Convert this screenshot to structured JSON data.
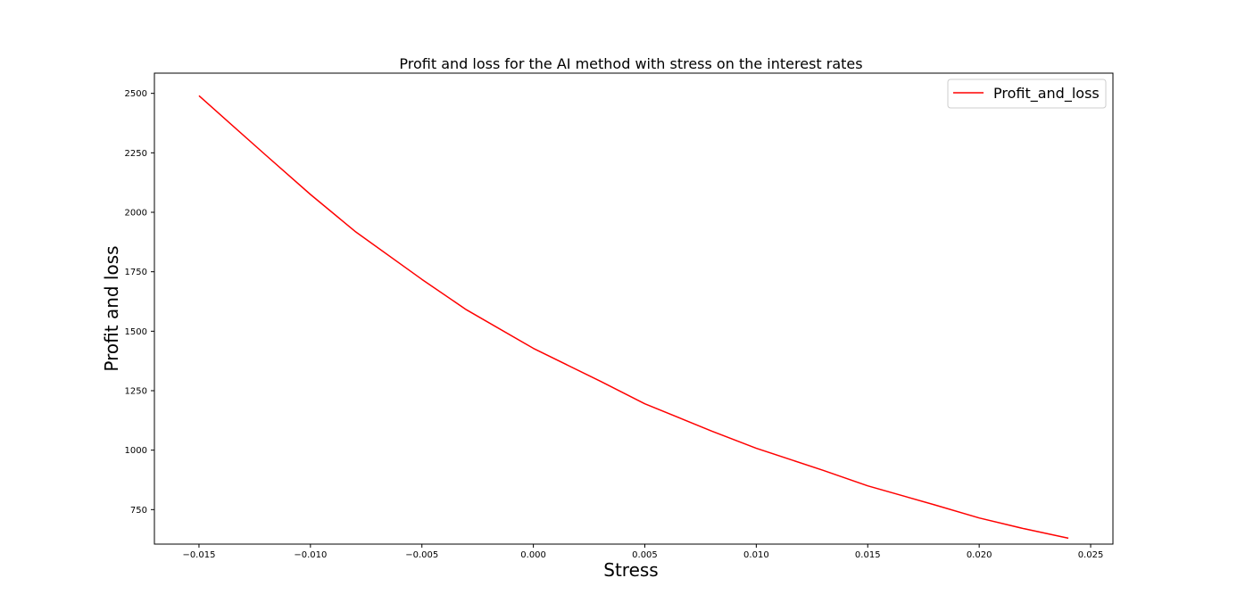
{
  "chart_data": {
    "type": "line",
    "title": "Profit and loss for the AI method with stress on the interest rates",
    "xlabel": "Stress",
    "ylabel": "Profit and loss",
    "xlim": [
      -0.017,
      0.026
    ],
    "ylim": [
      605,
      2585
    ],
    "x_ticks": [
      -0.015,
      -0.01,
      -0.005,
      0.0,
      0.005,
      0.01,
      0.015,
      0.02,
      0.025
    ],
    "x_tick_labels": [
      "−0.015",
      "−0.010",
      "−0.005",
      "0.000",
      "0.005",
      "0.010",
      "0.015",
      "0.020",
      "0.025"
    ],
    "y_ticks": [
      750,
      1000,
      1250,
      1500,
      1750,
      2000,
      2250,
      2500
    ],
    "y_tick_labels": [
      "750",
      "1000",
      "1250",
      "1500",
      "1750",
      "2000",
      "2250",
      "2500"
    ],
    "grid": false,
    "legend_position": "top-right",
    "series": [
      {
        "name": "Profit_and_loss",
        "color": "#ff0000",
        "x": [
          -0.015,
          -0.012,
          -0.01,
          -0.008,
          -0.005,
          -0.003,
          0.0,
          0.003,
          0.005,
          0.008,
          0.01,
          0.013,
          0.015,
          0.018,
          0.02,
          0.022,
          0.024
        ],
        "y": [
          2490,
          2240,
          2075,
          1920,
          1718,
          1590,
          1428,
          1290,
          1195,
          1080,
          1008,
          915,
          850,
          770,
          715,
          670,
          630
        ]
      }
    ]
  }
}
